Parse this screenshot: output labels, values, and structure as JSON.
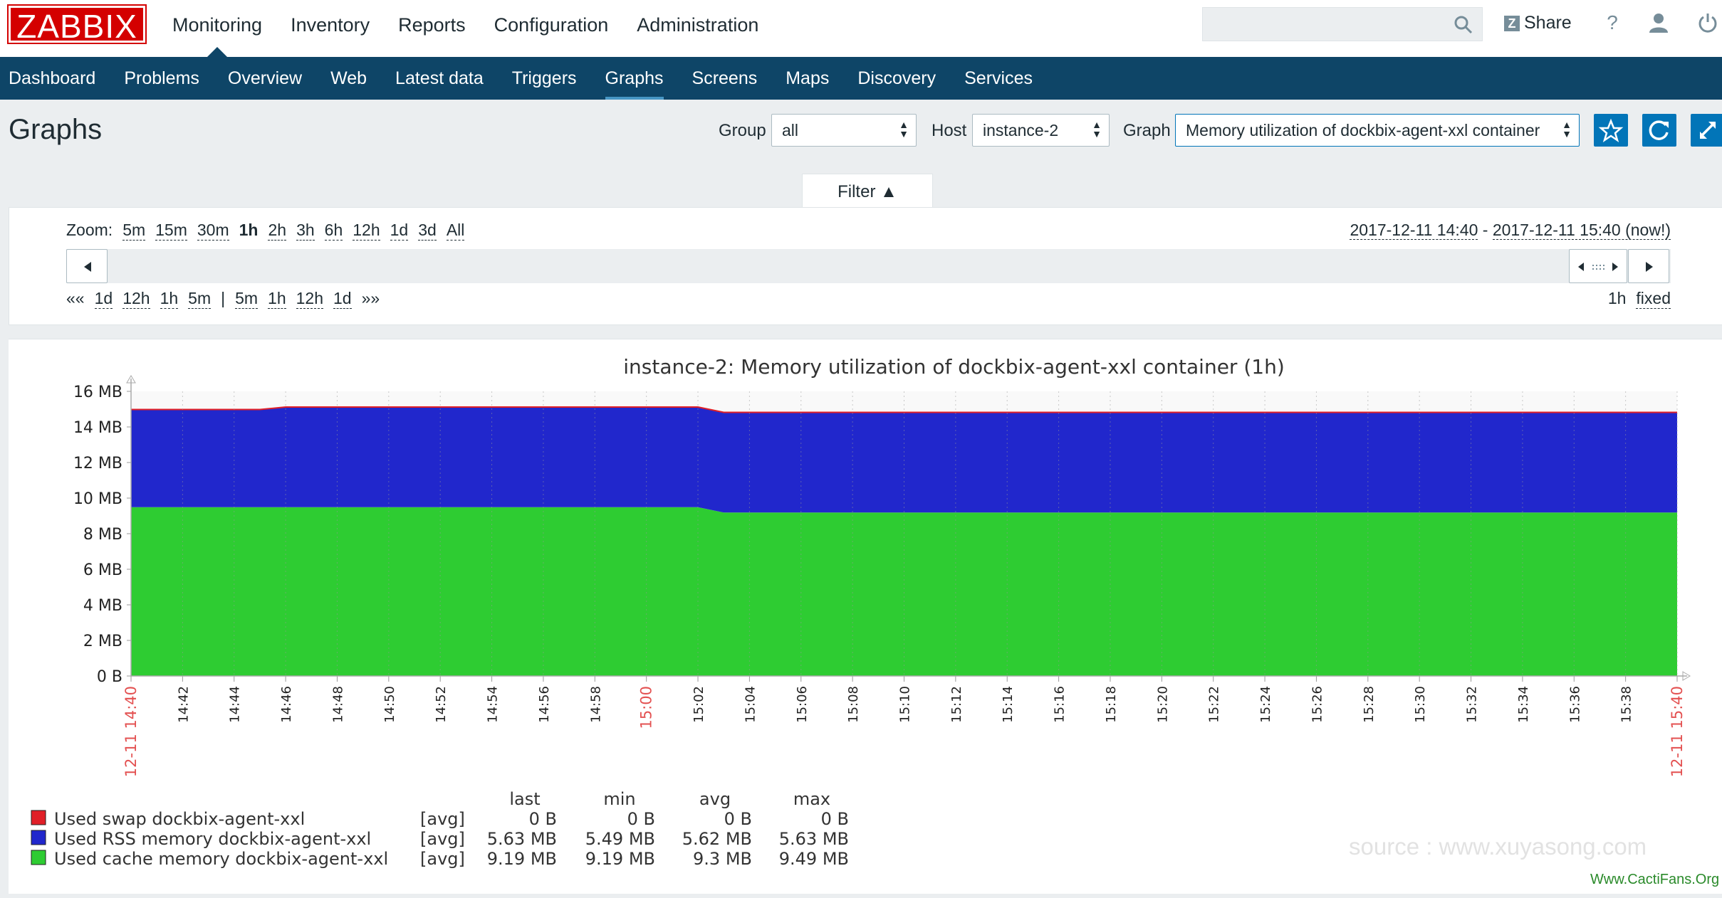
{
  "app": {
    "logo": "ZABBIX",
    "top_nav": [
      "Monitoring",
      "Inventory",
      "Reports",
      "Configuration",
      "Administration"
    ],
    "active_top": "Monitoring",
    "share_label": "Share",
    "help_label": "?"
  },
  "sub_nav": [
    "Dashboard",
    "Problems",
    "Overview",
    "Web",
    "Latest data",
    "Triggers",
    "Graphs",
    "Screens",
    "Maps",
    "Discovery",
    "Services"
  ],
  "active_sub": "Graphs",
  "page": {
    "title": "Graphs",
    "group_label": "Group",
    "group_value": "all",
    "host_label": "Host",
    "host_value": "instance-2",
    "graph_label": "Graph",
    "graph_value": "Memory utilization of dockbix-agent-xxl container"
  },
  "filter": {
    "tab_label": "Filter ▲",
    "zoom_label": "Zoom:",
    "zoom_options": [
      "5m",
      "15m",
      "30m",
      "1h",
      "2h",
      "3h",
      "6h",
      "12h",
      "1d",
      "3d",
      "All"
    ],
    "zoom_selected": "1h",
    "range_from": "2017-12-11 14:40",
    "range_sep": " - ",
    "range_to": "2017-12-11 15:40 (now!)",
    "back_links": [
      "««",
      "1d",
      "12h",
      "1h",
      "5m"
    ],
    "separator": "|",
    "forward_links": [
      "5m",
      "1h",
      "12h",
      "1d",
      "»»"
    ],
    "period": "1h",
    "fixed": "fixed"
  },
  "chart_data": {
    "type": "area",
    "title": "instance-2: Memory utilization of dockbix-agent-xxl container (1h)",
    "y_ticks": [
      "16 MB",
      "14 MB",
      "12 MB",
      "10 MB",
      "8 MB",
      "6 MB",
      "4 MB",
      "2 MB",
      "0 B"
    ],
    "ylim": [
      0,
      16
    ],
    "y_unit": "MB",
    "x_tick_labels": [
      "12-11 14:40",
      "14:42",
      "14:44",
      "14:46",
      "14:48",
      "14:50",
      "14:52",
      "14:54",
      "14:56",
      "14:58",
      "15:00",
      "15:02",
      "15:04",
      "15:06",
      "15:08",
      "15:10",
      "15:12",
      "15:14",
      "15:16",
      "15:18",
      "15:20",
      "15:22",
      "15:24",
      "15:26",
      "15:28",
      "15:30",
      "15:32",
      "15:34",
      "15:36",
      "15:38",
      "12-11 15:40"
    ],
    "x_red_labels": [
      "12-11 14:40",
      "15:00",
      "12-11 15:40"
    ],
    "x_minutes": [
      0,
      5,
      6,
      22,
      23,
      60
    ],
    "series": [
      {
        "name": "Used swap dockbix-agent-xxl",
        "color": "#e01f27",
        "values": [
          0,
          0,
          0,
          0,
          0,
          0
        ]
      },
      {
        "name": "Used RSS memory dockbix-agent-xxl",
        "color": "#2127cc",
        "values": [
          5.49,
          5.49,
          5.63,
          5.63,
          5.63,
          5.63
        ]
      },
      {
        "name": "Used cache memory dockbix-agent-xxl",
        "color": "#2ecc32",
        "values": [
          9.49,
          9.49,
          9.49,
          9.49,
          9.19,
          9.19
        ]
      }
    ],
    "legend_headers": [
      "last",
      "min",
      "avg",
      "max"
    ],
    "legend_rows": [
      {
        "name": "Used swap dockbix-agent-xxl",
        "func": "[avg]",
        "last": "0 B",
        "min": "0 B",
        "avg": "0 B",
        "max": "0 B"
      },
      {
        "name": "Used RSS memory dockbix-agent-xxl",
        "func": "[avg]",
        "last": "5.63 MB",
        "min": "5.49 MB",
        "avg": "5.62 MB",
        "max": "5.63 MB"
      },
      {
        "name": "Used cache memory dockbix-agent-xxl",
        "func": "[avg]",
        "last": "9.19 MB",
        "min": "9.19 MB",
        "avg": "9.3 MB",
        "max": "9.49 MB"
      }
    ]
  },
  "watermarks": {
    "source": "source : www.xuyasong.com",
    "site": "Www.CactiFans.Org"
  }
}
